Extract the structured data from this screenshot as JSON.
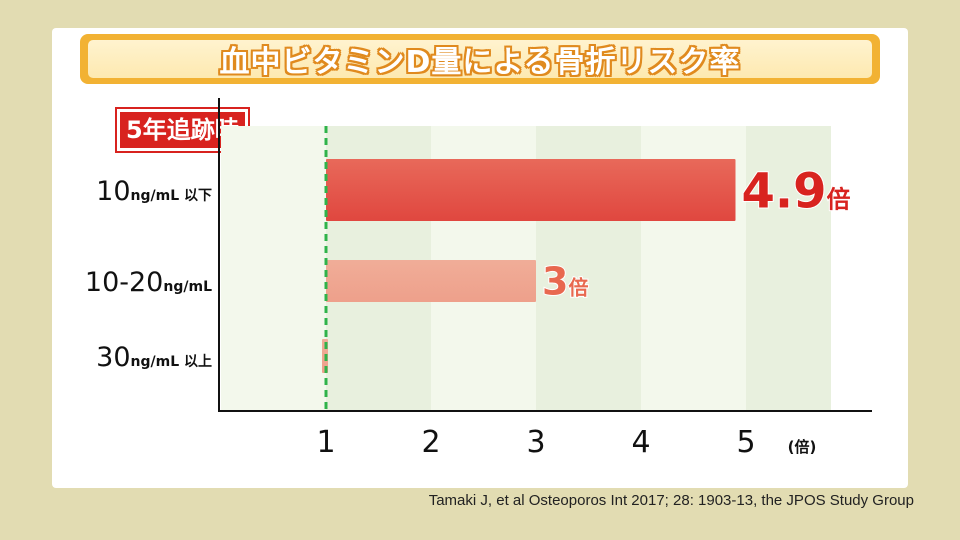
{
  "title": "血中ビタミンD量による骨折リスク率",
  "badge": "5年追跡時",
  "source": "Tamaki J, et al Osteoporos Int 2017; 28: 1903-13, the JPOS Study Group",
  "colors": {
    "background": "#e2dcb2",
    "title_fill": "#f2b233",
    "badge_red": "#d8231f",
    "bar_dark": "#e0473f",
    "bar_light": "#eea08b",
    "reference_line": "#2fb34a",
    "grid_band": "#f0f6e8"
  },
  "chart_data": {
    "type": "bar",
    "orientation": "horizontal",
    "categories": [
      {
        "num": "10",
        "unit": "ng/mL 以下"
      },
      {
        "num": "10-20",
        "unit": "ng/mL"
      },
      {
        "num": "30",
        "unit": "ng/mL 以上"
      }
    ],
    "values": [
      4.9,
      3,
      1
    ],
    "value_labels": [
      {
        "num": "4.9",
        "unit": "倍"
      },
      {
        "num": "3",
        "unit": "倍"
      },
      {
        "num": "",
        "unit": ""
      }
    ],
    "xlim": [
      0,
      6
    ],
    "x_ticks": [
      "1",
      "2",
      "3",
      "4",
      "5"
    ],
    "x_unit": "(倍)",
    "reference_value": 1
  }
}
